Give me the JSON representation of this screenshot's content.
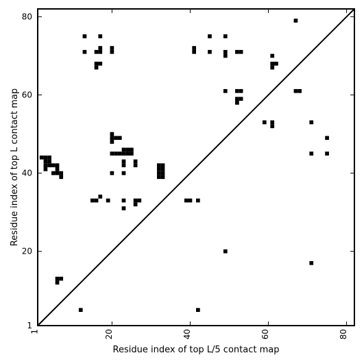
{
  "chart_data": {
    "type": "heatmap",
    "title": "",
    "xlabel": "Residue index of top L/5 contact map",
    "ylabel": "Residue index of top L contact map",
    "xlim": [
      1,
      82
    ],
    "ylim": [
      1,
      82
    ],
    "x_ticks": [
      1,
      20,
      40,
      60,
      80
    ],
    "y_ticks": [
      1,
      20,
      40,
      60,
      80
    ],
    "x_tick_labels": [
      "1",
      "20",
      "40",
      "60",
      "80"
    ],
    "y_tick_labels": [
      "1",
      "20",
      "40",
      "60",
      "80"
    ],
    "diagonal": true,
    "cell_color": "#000000",
    "contacts": [
      [
        13,
        75
      ],
      [
        17,
        75
      ],
      [
        13,
        71
      ],
      [
        16,
        71
      ],
      [
        17,
        71
      ],
      [
        17,
        72
      ],
      [
        20,
        71
      ],
      [
        20,
        72
      ],
      [
        16,
        68
      ],
      [
        17,
        68
      ],
      [
        16,
        67
      ],
      [
        45,
        75
      ],
      [
        49,
        75
      ],
      [
        41,
        72
      ],
      [
        41,
        71
      ],
      [
        45,
        71
      ],
      [
        49,
        71
      ],
      [
        49,
        70
      ],
      [
        52,
        71
      ],
      [
        53,
        71
      ],
      [
        67,
        79
      ],
      [
        61,
        70
      ],
      [
        61,
        68
      ],
      [
        62,
        68
      ],
      [
        61,
        67
      ],
      [
        49,
        61
      ],
      [
        52,
        61
      ],
      [
        53,
        61
      ],
      [
        52,
        59
      ],
      [
        53,
        59
      ],
      [
        52,
        58
      ],
      [
        67,
        61
      ],
      [
        68,
        61
      ],
      [
        59,
        53
      ],
      [
        61,
        53
      ],
      [
        61,
        52
      ],
      [
        71,
        53
      ],
      [
        75,
        49
      ],
      [
        71,
        45
      ],
      [
        75,
        45
      ],
      [
        20,
        50
      ],
      [
        20,
        49
      ],
      [
        20,
        48
      ],
      [
        21,
        49
      ],
      [
        22,
        49
      ],
      [
        20,
        45
      ],
      [
        21,
        45
      ],
      [
        22,
        45
      ],
      [
        23,
        45
      ],
      [
        24,
        45
      ],
      [
        25,
        45
      ],
      [
        23,
        46
      ],
      [
        24,
        46
      ],
      [
        25,
        46
      ],
      [
        23,
        43
      ],
      [
        23,
        42
      ],
      [
        26,
        43
      ],
      [
        26,
        42
      ],
      [
        20,
        40
      ],
      [
        23,
        40
      ],
      [
        2,
        44
      ],
      [
        3,
        44
      ],
      [
        4,
        44
      ],
      [
        3,
        43
      ],
      [
        4,
        43
      ],
      [
        3,
        42
      ],
      [
        4,
        42
      ],
      [
        5,
        42
      ],
      [
        6,
        42
      ],
      [
        3,
        41
      ],
      [
        6,
        41
      ],
      [
        5,
        40
      ],
      [
        6,
        40
      ],
      [
        7,
        40
      ],
      [
        7,
        39
      ],
      [
        32,
        42
      ],
      [
        33,
        42
      ],
      [
        32,
        41
      ],
      [
        33,
        41
      ],
      [
        32,
        40
      ],
      [
        33,
        40
      ],
      [
        32,
        39
      ],
      [
        33,
        39
      ],
      [
        15,
        33
      ],
      [
        16,
        33
      ],
      [
        17,
        34
      ],
      [
        19,
        33
      ],
      [
        23,
        33
      ],
      [
        23,
        31
      ],
      [
        26,
        33
      ],
      [
        27,
        33
      ],
      [
        26,
        32
      ],
      [
        39,
        33
      ],
      [
        40,
        33
      ],
      [
        42,
        33
      ],
      [
        49,
        20
      ],
      [
        71,
        17
      ],
      [
        6,
        13
      ],
      [
        7,
        13
      ],
      [
        6,
        12
      ],
      [
        12,
        5
      ],
      [
        42,
        5
      ]
    ]
  }
}
